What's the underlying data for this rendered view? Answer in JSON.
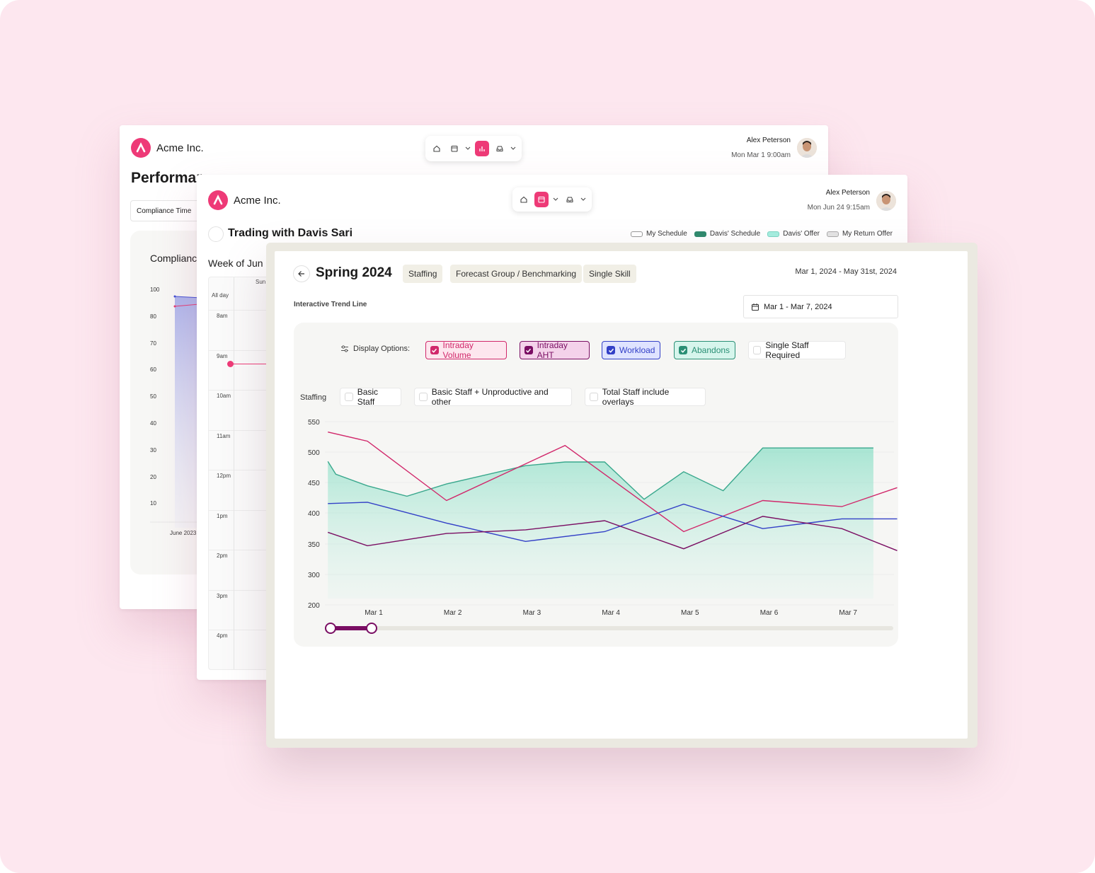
{
  "brand": {
    "name": "Acme Inc.",
    "color": "#ee3a77"
  },
  "win1": {
    "user_name": "Alex Peterson",
    "user_time": "Mon Mar 1 9:00am",
    "page_title": "Performar",
    "select": "Compliance Time",
    "card_title": "Complianc",
    "y_ticks": [
      "100",
      "80",
      "70",
      "60",
      "50",
      "40",
      "30",
      "20",
      "10"
    ],
    "x_tick": "June 2023"
  },
  "win2": {
    "user_name": "Alex Peterson",
    "user_time": "Mon Jun 24 9:15am",
    "title": "Trading with Davis Sari",
    "week": "Week of Jun",
    "legend": [
      {
        "label": "My Schedule",
        "color": "#ffffff"
      },
      {
        "label": "Davis' Schedule",
        "color": "#2f8a6d"
      },
      {
        "label": "Davis' Offer",
        "color": "#a6eee0"
      },
      {
        "label": "My Return Offer",
        "color": "#e4e4e4"
      }
    ],
    "day_header": "Sun",
    "all_day": "All day",
    "hours": [
      "8am",
      "9am",
      "10am",
      "11am",
      "12pm",
      "1pm",
      "2pm",
      "3pm",
      "4pm"
    ]
  },
  "main": {
    "title": "Spring 2024",
    "tags": [
      "Staffing",
      "Forecast Group / Benchmarking",
      "Single Skill"
    ],
    "range": "Mar 1, 2024 - May 31st, 2024",
    "section": "Interactive Trend Line",
    "date_picker": "Mar 1 - Mar 7, 2024",
    "display_label": "Display Options:",
    "options": [
      {
        "label": "Intraday Volume",
        "checked": true,
        "color": "#d1286b",
        "bg": "#fde6ee"
      },
      {
        "label": "Intraday AHT",
        "checked": true,
        "color": "#7a0e63",
        "bg": "#f4d2ea"
      },
      {
        "label": "Workload",
        "checked": true,
        "color": "#3340c7",
        "bg": "#dfe3ff"
      },
      {
        "label": "Abandons",
        "checked": true,
        "color": "#2a8f75",
        "bg": "#d6f5ec"
      },
      {
        "label": "Single Staff Required",
        "checked": false,
        "color": "#1b1b1b",
        "bg": "#ffffff"
      }
    ],
    "staffing_label": "Staffing",
    "staffing_options": [
      "Basic Staff",
      "Basic Staff + Unproductive and other",
      "Total Staff include overlays"
    ]
  },
  "chart_data": {
    "type": "line",
    "y_ticks": [
      550,
      500,
      450,
      400,
      350,
      300,
      200
    ],
    "categories": [
      "Mar 1",
      "Mar 2",
      "Mar 3",
      "Mar 4",
      "Mar 5",
      "Mar 6",
      "Mar 7"
    ],
    "ylim": [
      200,
      550
    ],
    "series": [
      {
        "name": "Abandons",
        "type": "area",
        "color": "#3aa88d",
        "x": [
          0,
          0.1,
          0.5,
          1,
          1.5,
          2,
          2.5,
          3,
          3.5,
          4,
          4.5,
          5,
          5.5,
          6,
          6.5,
          6.9
        ],
        "values": [
          485,
          464,
          445,
          428,
          448,
          463,
          478,
          484,
          484,
          423,
          468,
          437,
          507,
          507,
          507,
          507
        ]
      },
      {
        "name": "Intraday Volume",
        "color": "#d1286b",
        "x": [
          0,
          0.5,
          1.5,
          3,
          4.5,
          5.5,
          6.5,
          7.2
        ],
        "values": [
          533,
          518,
          421,
          511,
          370,
          421,
          411,
          442
        ]
      },
      {
        "name": "Workload",
        "color": "#3340c7",
        "x": [
          0,
          0.5,
          1.5,
          2.5,
          3.5,
          4.5,
          5.5,
          6.5,
          7.2
        ],
        "values": [
          416,
          418,
          384,
          354,
          370,
          415,
          375,
          391,
          391
        ]
      },
      {
        "name": "Intraday AHT",
        "color": "#7a0e63",
        "x": [
          0,
          0.5,
          1.5,
          2.5,
          3.5,
          4.5,
          5.5,
          6.5,
          7.2
        ],
        "values": [
          369,
          347,
          367,
          373,
          388,
          342,
          395,
          375,
          339
        ]
      }
    ],
    "slider": {
      "start": 0,
      "end": 0.07
    }
  }
}
